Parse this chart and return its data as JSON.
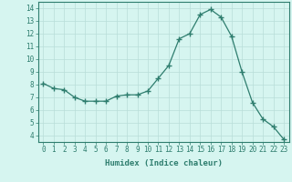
{
  "x": [
    0,
    1,
    2,
    3,
    4,
    5,
    6,
    7,
    8,
    9,
    10,
    11,
    12,
    13,
    14,
    15,
    16,
    17,
    18,
    19,
    20,
    21,
    22,
    23
  ],
  "y": [
    8.1,
    7.7,
    7.6,
    7.0,
    6.7,
    6.7,
    6.7,
    7.1,
    7.2,
    7.2,
    7.5,
    8.5,
    9.5,
    11.6,
    12.0,
    13.5,
    13.9,
    13.3,
    11.8,
    9.0,
    6.6,
    5.3,
    4.7,
    3.7
  ],
  "line_color": "#2e7d6e",
  "marker": "+",
  "marker_size": 4,
  "bg_color": "#d6f5f0",
  "grid_color": "#b8ddd8",
  "xlabel": "Humidex (Indice chaleur)",
  "xlim": [
    -0.5,
    23.5
  ],
  "ylim": [
    3.5,
    14.5
  ],
  "yticks": [
    4,
    5,
    6,
    7,
    8,
    9,
    10,
    11,
    12,
    13,
    14
  ],
  "xticks": [
    0,
    1,
    2,
    3,
    4,
    5,
    6,
    7,
    8,
    9,
    10,
    11,
    12,
    13,
    14,
    15,
    16,
    17,
    18,
    19,
    20,
    21,
    22,
    23
  ],
  "tick_label_fontsize": 5.5,
  "xlabel_fontsize": 6.5,
  "tick_color": "#2e7d6e",
  "axis_color": "#2e7d6e",
  "linewidth": 0.9,
  "marker_linewidth": 1.0
}
